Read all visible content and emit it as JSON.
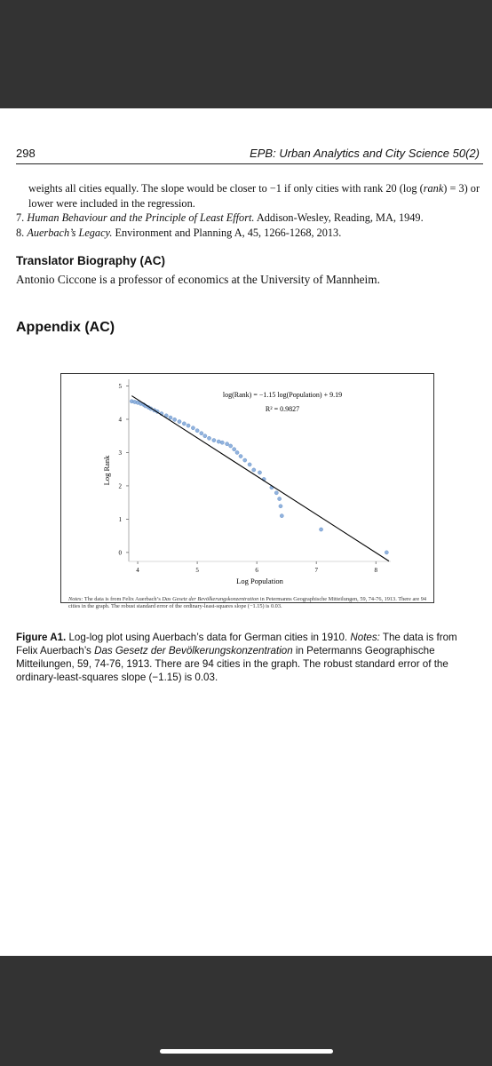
{
  "header": {
    "page_number": "298",
    "journal": "EPB: Urban Analytics and City Science 50(2)"
  },
  "notes": {
    "continuation": [
      "weights all cities equally. The slope would be closer to −1 if only cities with rank 20 (log (",
      "rank",
      ") = 3) or lower were included in the regression."
    ],
    "items": [
      {
        "number": "7.",
        "title": "Human Behaviour and the Principle of Least Effort.",
        "rest": "Addison-Wesley, Reading, MA, 1949."
      },
      {
        "number": "8.",
        "title": "Auerbach’s Legacy.",
        "rest": "Environment and Planning A, 45, 1266-1268, 2013."
      }
    ]
  },
  "translator": {
    "heading": "Translator Biography (AC)",
    "text": "Antonio Ciccone is a professor of economics at the University of Mannheim."
  },
  "appendix": {
    "heading": "Appendix (AC)"
  },
  "figure": {
    "chart": {
      "type": "scatter",
      "x": [
        3.9,
        3.95,
        4.0,
        4.05,
        4.1,
        4.13,
        4.18,
        4.22,
        4.28,
        4.33,
        4.4,
        4.48,
        4.55,
        4.62,
        4.7,
        4.78,
        4.85,
        4.93,
        5.0,
        5.07,
        5.13,
        5.2,
        5.28,
        5.36,
        5.42,
        5.5,
        5.56,
        5.62,
        5.67,
        5.73,
        5.8,
        5.88,
        5.95,
        6.05,
        6.12,
        6.25,
        6.33,
        6.38,
        6.4,
        6.42,
        7.08,
        8.18
      ],
      "y": [
        4.54,
        4.52,
        4.5,
        4.47,
        4.44,
        4.4,
        4.36,
        4.32,
        4.27,
        4.23,
        4.17,
        4.11,
        4.05,
        3.99,
        3.93,
        3.87,
        3.81,
        3.74,
        3.66,
        3.58,
        3.5,
        3.43,
        3.37,
        3.33,
        3.3,
        3.26,
        3.2,
        3.1,
        3.0,
        2.89,
        2.77,
        2.64,
        2.48,
        2.4,
        2.2,
        1.95,
        1.79,
        1.61,
        1.39,
        1.1,
        0.69,
        0
      ],
      "color": "#7ea6d8",
      "fit": {
        "x": [
          3.9,
          8.22
        ],
        "y": [
          4.705,
          -0.26
        ],
        "color": "#000000"
      },
      "xlim": [
        3.85,
        8.25
      ],
      "ylim": [
        -0.27,
        5.2
      ],
      "xticks": [
        4,
        5,
        6,
        7,
        8
      ],
      "yticks": [
        0,
        1,
        2,
        3,
        4,
        5
      ],
      "xlabel": "Log Population",
      "ylabel": "Log Rank",
      "annotations": [
        "log(Rank) = −1.15 log(Population) + 9.19",
        "R² = 0.9827"
      ]
    },
    "chart_notes": [
      "Notes:",
      " The data is from Felix Auerbach’s ",
      "Das Gesetz der Bevölkerungskonzentration",
      " in Petermanns Geographische Mitteilungen, 59, 74-76, 1913. There are 94 cities in the graph. The robust standard error of the ordinary-least-squares slope (−1.15) is 0.03."
    ],
    "caption": [
      "Figure A1.",
      " Log-log plot using Auerbach’s data for German cities in 1910. ",
      "Notes:",
      " The data is from Felix Auerbach’s ",
      "Das Gesetz der Bevölkerungskonzentration",
      " in Petermanns Geographische Mitteilungen, 59, 74-76, 1913. There are 94 cities in the graph. The robust standard error of the ordinary-least-squares slope (−1.15) is 0.03."
    ]
  }
}
